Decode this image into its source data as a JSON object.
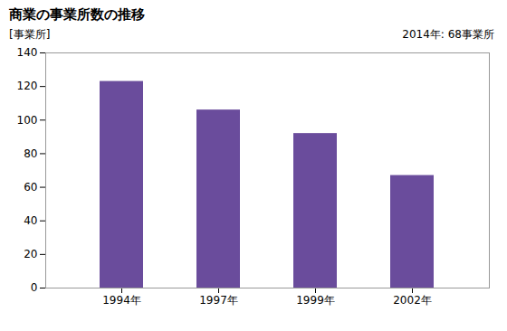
{
  "chart_data": {
    "type": "bar",
    "title": "商業の事業所数の推移",
    "ylabel": "[事業所]",
    "annotation": "2014年: 68事業所",
    "categories": [
      "1994年",
      "1997年",
      "1999年",
      "2002年"
    ],
    "values": [
      123,
      106,
      92,
      67
    ],
    "color": "#6A4C9C",
    "ylim": [
      0,
      140
    ],
    "yticks": [
      0,
      20,
      40,
      60,
      80,
      100,
      120,
      140
    ],
    "grid": false
  }
}
